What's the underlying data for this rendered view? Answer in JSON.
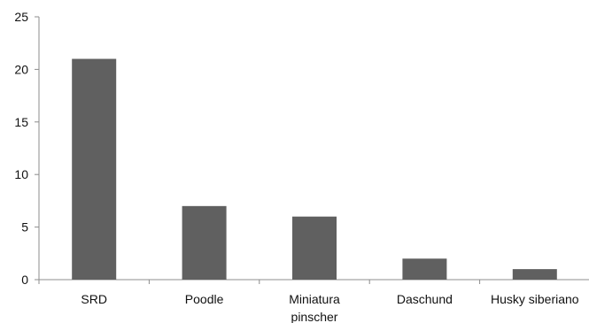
{
  "chart_data": {
    "type": "bar",
    "categories": [
      "SRD",
      "Poodle",
      "Miniatura pinscher",
      "Daschund",
      "Husky siberiano"
    ],
    "category_label_lines": [
      [
        "SRD"
      ],
      [
        "Poodle"
      ],
      [
        "Miniatura",
        "pinscher"
      ],
      [
        "Daschund"
      ],
      [
        "Husky siberiano"
      ]
    ],
    "values": [
      21,
      7,
      6,
      2,
      1
    ],
    "yticks": [
      "0",
      "5",
      "10",
      "15",
      "20",
      "25"
    ],
    "ylim": [
      0,
      25
    ],
    "grid": false,
    "legend": "none",
    "bar_color": "#606060",
    "axis_color": "#8c8c8c"
  }
}
